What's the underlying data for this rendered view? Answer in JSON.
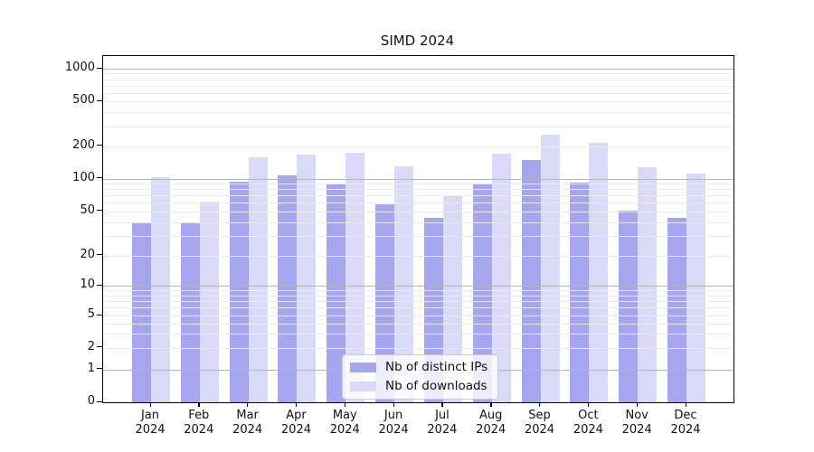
{
  "title": "SIMD 2024",
  "chart_data": {
    "type": "bar",
    "title": "SIMD 2024",
    "categories": [
      "Jan 2024",
      "Feb 2024",
      "Mar 2024",
      "Apr 2024",
      "May 2024",
      "Jun 2024",
      "Jul 2024",
      "Aug 2024",
      "Sep 2024",
      "Oct 2024",
      "Nov 2024",
      "Dec 2024"
    ],
    "series": [
      {
        "name": "Nb of distinct IPs",
        "color": "#a6a6f0",
        "values": [
          40,
          39,
          93,
          108,
          91,
          58,
          44,
          88,
          149,
          92,
          51,
          44
        ]
      },
      {
        "name": "Nb of downloads",
        "color": "#d9d9f8",
        "values": [
          103,
          61,
          157,
          167,
          172,
          131,
          70,
          169,
          250,
          212,
          128,
          112
        ]
      }
    ],
    "xlabel": "",
    "ylabel": "",
    "yscale": "symlog",
    "y_tick_labels": [
      1000,
      500,
      200,
      100,
      50,
      20,
      10,
      5,
      2,
      1,
      0
    ],
    "ylim": [
      0,
      1300
    ],
    "grid": "on",
    "legend_position": "lower center",
    "colors": {
      "major_gridline": "#b5b5b5",
      "minor_gridline": "#ececec",
      "axis": "#000000",
      "background": "#ffffff"
    }
  }
}
